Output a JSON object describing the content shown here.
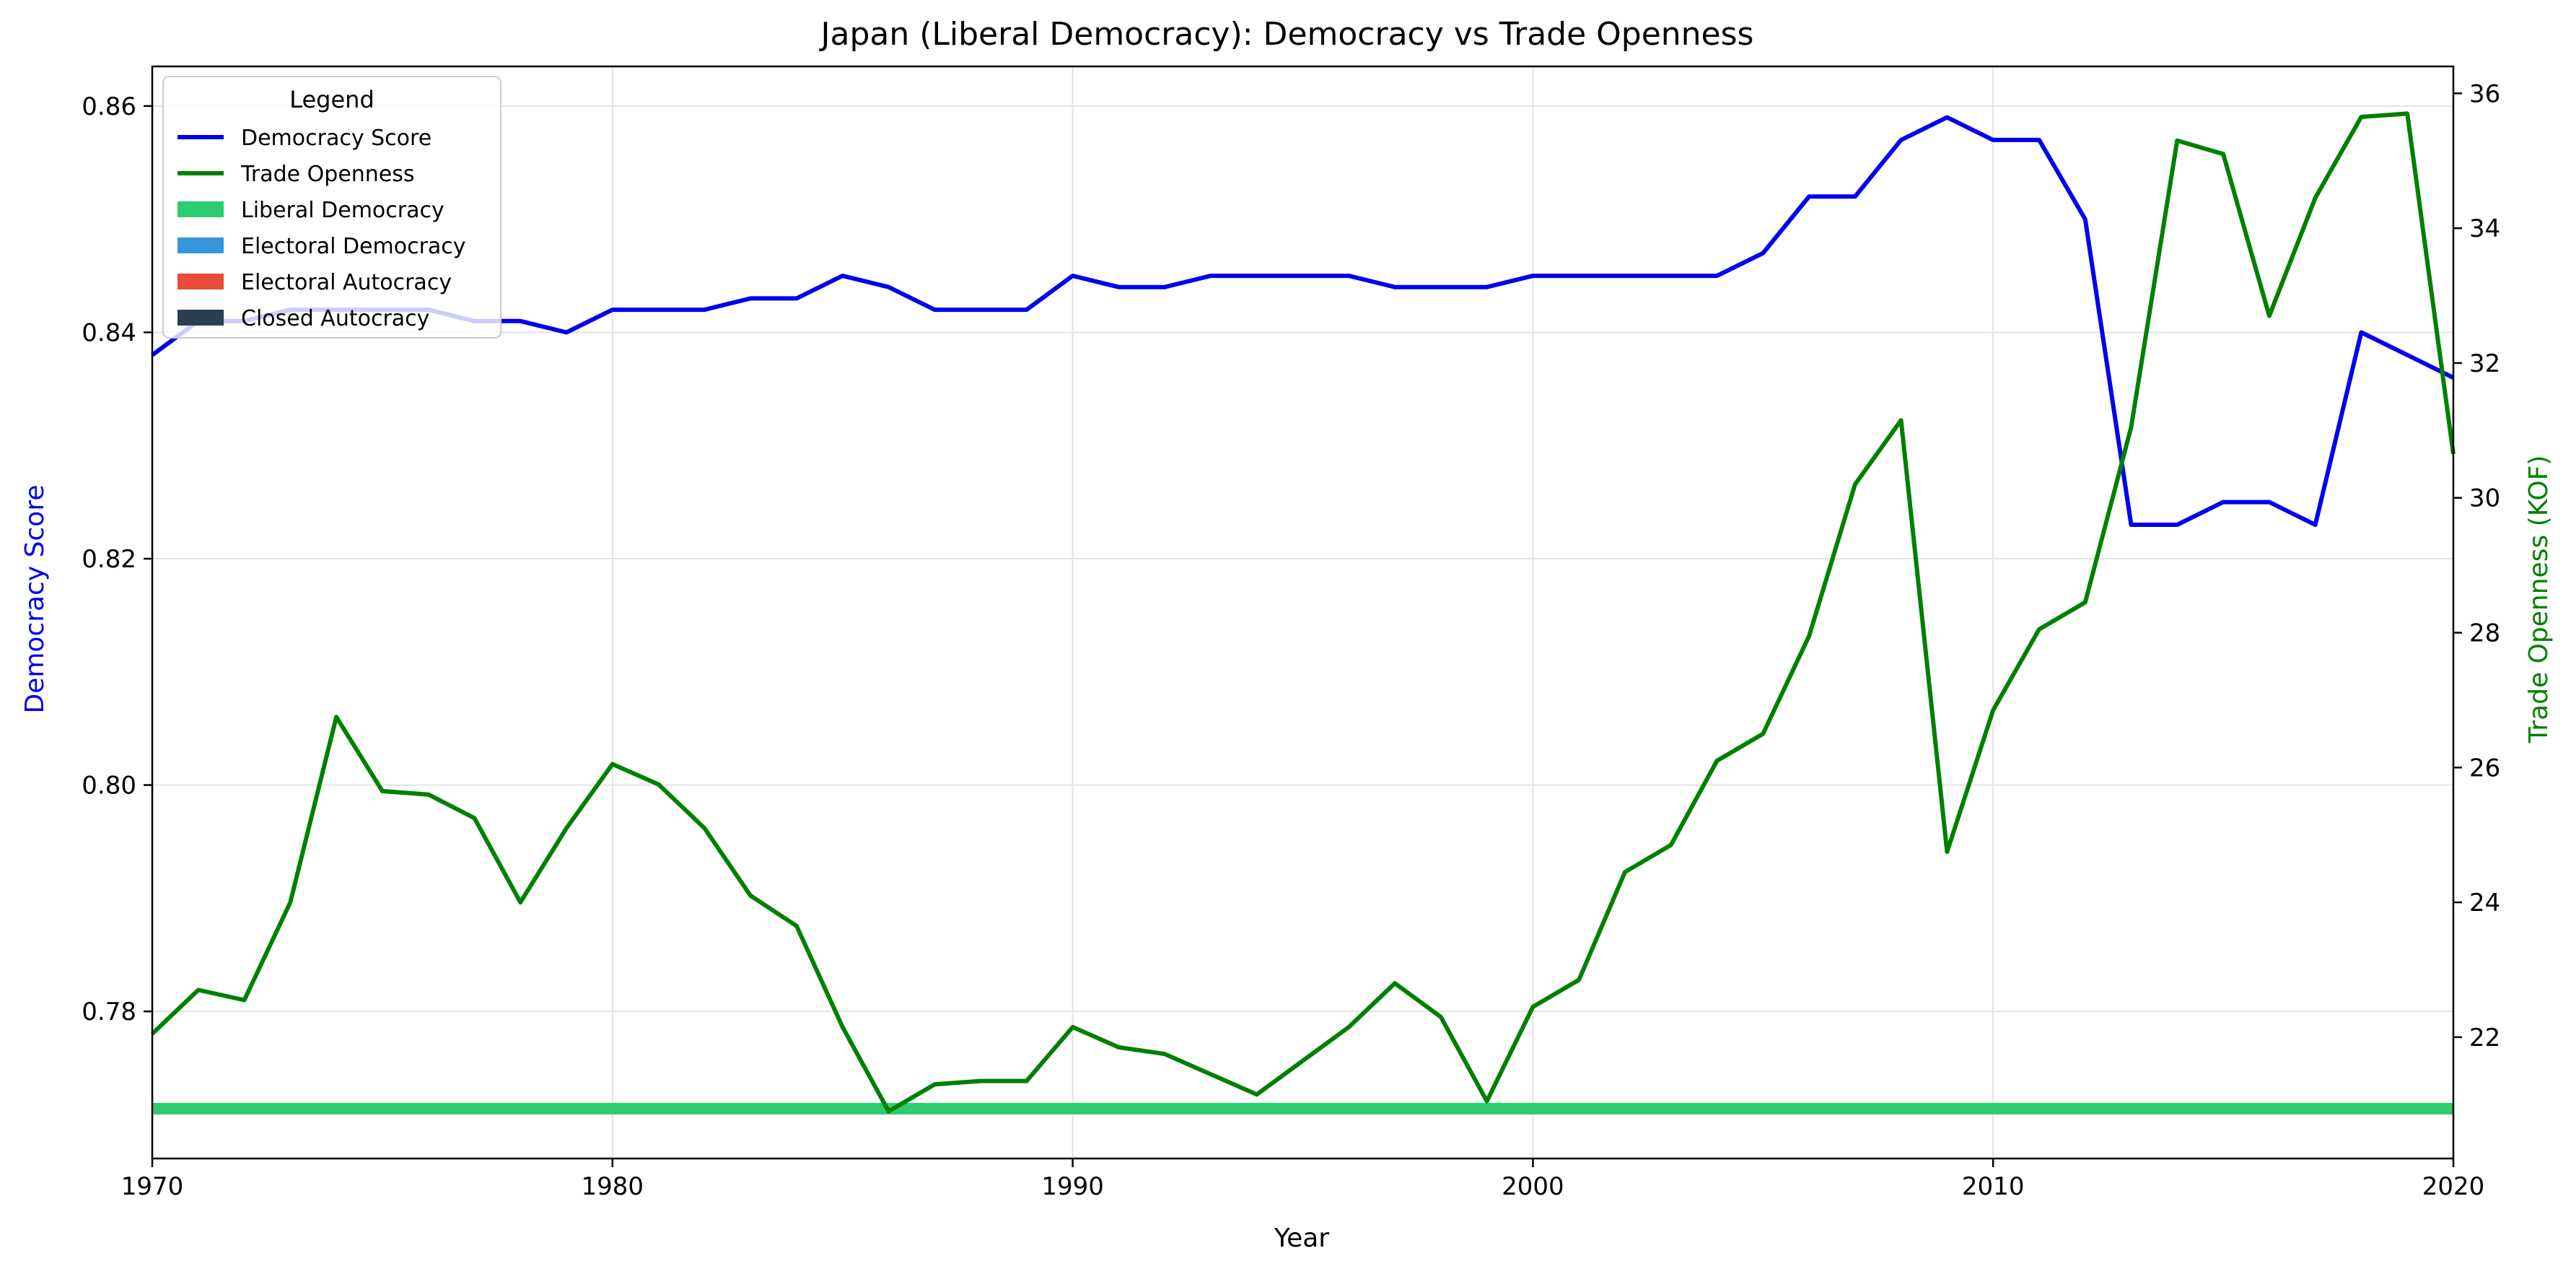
{
  "chart_data": {
    "type": "line",
    "title": "Japan (Liberal Democracy): Democracy vs Trade Openness",
    "xlabel": "Year",
    "ylabel": "Democracy Score",
    "y2label": "Trade Openness (KOF)",
    "xlim": [
      1970,
      2020
    ],
    "ylim": [
      0.767,
      0.8635
    ],
    "y2lim": [
      20.2,
      36.4
    ],
    "xticks": [
      1970,
      1980,
      1990,
      2000,
      2010,
      2020
    ],
    "xtick_labels": [
      "1970",
      "1980",
      "1990",
      "2000",
      "2010",
      "2020"
    ],
    "yticks": [
      0.78,
      0.8,
      0.82,
      0.84,
      0.86
    ],
    "ytick_labels": [
      "0.78",
      "0.80",
      "0.82",
      "0.84",
      "0.86"
    ],
    "y2ticks": [
      22,
      24,
      26,
      28,
      30,
      32,
      34,
      36
    ],
    "y2tick_labels": [
      "22",
      "24",
      "26",
      "28",
      "30",
      "32",
      "34",
      "36"
    ],
    "grid": true,
    "legend": {
      "title": "Legend",
      "position": "top-left",
      "entries": [
        {
          "label": "Democracy Score",
          "kind": "line",
          "color": "#0000ee"
        },
        {
          "label": "Trade Openness",
          "kind": "line",
          "color": "#008000"
        },
        {
          "label": "Liberal Democracy",
          "kind": "patch",
          "color": "#2ecc71"
        },
        {
          "label": "Electoral Democracy",
          "kind": "patch",
          "color": "#3498db"
        },
        {
          "label": "Electoral Autocracy",
          "kind": "patch",
          "color": "#e74c3c"
        },
        {
          "label": "Closed Autocracy",
          "kind": "patch",
          "color": "#2c3e50"
        }
      ]
    },
    "regime_band": {
      "label": "Liberal Democracy",
      "from": 1970,
      "to": 2020,
      "color": "#2ecc71"
    },
    "x": [
      1970,
      1971,
      1972,
      1973,
      1974,
      1975,
      1976,
      1977,
      1978,
      1979,
      1980,
      1981,
      1982,
      1983,
      1984,
      1985,
      1986,
      1987,
      1988,
      1989,
      1990,
      1991,
      1992,
      1993,
      1994,
      1995,
      1996,
      1997,
      1998,
      1999,
      2000,
      2001,
      2002,
      2003,
      2004,
      2005,
      2006,
      2007,
      2008,
      2009,
      2010,
      2011,
      2012,
      2013,
      2014,
      2015,
      2016,
      2017,
      2018,
      2019,
      2020
    ],
    "series": [
      {
        "name": "Democracy Score",
        "axis": "left",
        "color": "#0000ee",
        "values": [
          0.838,
          0.841,
          0.841,
          0.842,
          0.842,
          0.842,
          0.842,
          0.841,
          0.841,
          0.84,
          0.842,
          0.842,
          0.842,
          0.843,
          0.843,
          0.845,
          0.844,
          0.842,
          0.842,
          0.842,
          0.845,
          0.844,
          0.844,
          0.845,
          0.845,
          0.845,
          0.845,
          0.844,
          0.844,
          0.844,
          0.845,
          0.845,
          0.845,
          0.845,
          0.845,
          0.847,
          0.852,
          0.852,
          0.857,
          0.859,
          0.857,
          0.857,
          0.85,
          0.823,
          0.823,
          0.825,
          0.825,
          0.823,
          0.84,
          0.838,
          0.836
        ]
      },
      {
        "name": "Trade Openness",
        "axis": "right",
        "color": "#008000",
        "values": [
          22.05,
          22.7,
          22.55,
          24.0,
          26.75,
          25.65,
          25.6,
          25.25,
          24.0,
          25.1,
          26.05,
          25.75,
          25.1,
          24.1,
          23.65,
          22.15,
          20.9,
          21.3,
          21.35,
          21.35,
          22.15,
          21.85,
          21.75,
          21.45,
          21.15,
          21.65,
          22.15,
          22.8,
          22.3,
          21.05,
          22.45,
          22.85,
          24.45,
          24.85,
          26.1,
          26.5,
          27.95,
          30.2,
          31.15,
          24.75,
          26.85,
          28.05,
          28.45,
          31.05,
          35.3,
          35.1,
          32.7,
          34.45,
          35.65,
          35.7,
          30.65
        ]
      }
    ]
  }
}
